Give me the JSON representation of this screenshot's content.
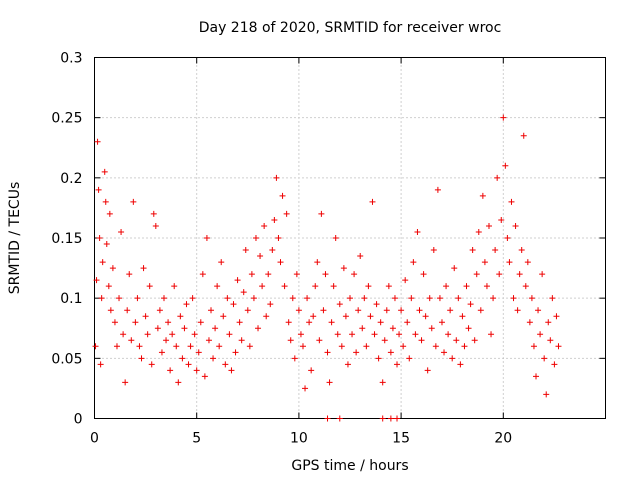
{
  "chart_data": {
    "type": "scatter",
    "title": "Day 218 of 2020, SRMTID for receiver wroc",
    "xlabel": "GPS time / hours",
    "ylabel": "SRMTID / TECUs",
    "xlim": [
      0,
      25
    ],
    "ylim": [
      0,
      0.3
    ],
    "xticks": [
      0,
      5,
      10,
      15,
      20
    ],
    "xtick_labels": [
      "0",
      "5",
      "10",
      "15",
      "20"
    ],
    "yticks": [
      0,
      0.05,
      0.1,
      0.15,
      0.2,
      0.25,
      0.3
    ],
    "ytick_labels": [
      "0",
      "0.05",
      "0.1",
      "0.15",
      "0.2",
      "0.25",
      "0.3"
    ],
    "grid": true,
    "marker": "+",
    "color": "#ee0000",
    "series": [
      {
        "name": "SRMTID",
        "points": [
          [
            0.05,
            0.06
          ],
          [
            0.1,
            0.115
          ],
          [
            0.15,
            0.23
          ],
          [
            0.2,
            0.19
          ],
          [
            0.25,
            0.15
          ],
          [
            0.3,
            0.045
          ],
          [
            0.35,
            0.1
          ],
          [
            0.4,
            0.13
          ],
          [
            0.5,
            0.205
          ],
          [
            0.55,
            0.18
          ],
          [
            0.6,
            0.145
          ],
          [
            0.7,
            0.11
          ],
          [
            0.75,
            0.17
          ],
          [
            0.8,
            0.09
          ],
          [
            0.9,
            0.125
          ],
          [
            1.0,
            0.08
          ],
          [
            1.1,
            0.06
          ],
          [
            1.2,
            0.1
          ],
          [
            1.3,
            0.155
          ],
          [
            1.4,
            0.07
          ],
          [
            1.5,
            0.03
          ],
          [
            1.6,
            0.09
          ],
          [
            1.7,
            0.12
          ],
          [
            1.8,
            0.065
          ],
          [
            1.9,
            0.18
          ],
          [
            2.0,
            0.08
          ],
          [
            2.1,
            0.1
          ],
          [
            2.2,
            0.06
          ],
          [
            2.3,
            0.05
          ],
          [
            2.4,
            0.125
          ],
          [
            2.5,
            0.085
          ],
          [
            2.6,
            0.07
          ],
          [
            2.7,
            0.11
          ],
          [
            2.8,
            0.045
          ],
          [
            2.9,
            0.17
          ],
          [
            3.0,
            0.16
          ],
          [
            3.1,
            0.075
          ],
          [
            3.2,
            0.09
          ],
          [
            3.3,
            0.055
          ],
          [
            3.4,
            0.1
          ],
          [
            3.5,
            0.065
          ],
          [
            3.6,
            0.08
          ],
          [
            3.7,
            0.04
          ],
          [
            3.8,
            0.07
          ],
          [
            3.9,
            0.11
          ],
          [
            4.0,
            0.06
          ],
          [
            4.1,
            0.03
          ],
          [
            4.2,
            0.085
          ],
          [
            4.3,
            0.05
          ],
          [
            4.4,
            0.075
          ],
          [
            4.5,
            0.095
          ],
          [
            4.6,
            0.045
          ],
          [
            4.7,
            0.06
          ],
          [
            4.8,
            0.1
          ],
          [
            4.9,
            0.07
          ],
          [
            5.0,
            0.04
          ],
          [
            5.1,
            0.055
          ],
          [
            5.2,
            0.08
          ],
          [
            5.3,
            0.12
          ],
          [
            5.4,
            0.035
          ],
          [
            5.5,
            0.15
          ],
          [
            5.6,
            0.065
          ],
          [
            5.7,
            0.09
          ],
          [
            5.8,
            0.05
          ],
          [
            5.9,
            0.075
          ],
          [
            6.0,
            0.11
          ],
          [
            6.1,
            0.06
          ],
          [
            6.2,
            0.13
          ],
          [
            6.3,
            0.085
          ],
          [
            6.4,
            0.045
          ],
          [
            6.5,
            0.1
          ],
          [
            6.6,
            0.07
          ],
          [
            6.7,
            0.04
          ],
          [
            6.8,
            0.095
          ],
          [
            6.9,
            0.055
          ],
          [
            7.0,
            0.115
          ],
          [
            7.1,
            0.08
          ],
          [
            7.2,
            0.065
          ],
          [
            7.3,
            0.105
          ],
          [
            7.4,
            0.14
          ],
          [
            7.5,
            0.09
          ],
          [
            7.6,
            0.06
          ],
          [
            7.7,
            0.12
          ],
          [
            7.8,
            0.1
          ],
          [
            7.9,
            0.15
          ],
          [
            8.0,
            0.075
          ],
          [
            8.1,
            0.135
          ],
          [
            8.2,
            0.11
          ],
          [
            8.3,
            0.16
          ],
          [
            8.4,
            0.085
          ],
          [
            8.5,
            0.12
          ],
          [
            8.6,
            0.095
          ],
          [
            8.7,
            0.14
          ],
          [
            8.8,
            0.165
          ],
          [
            8.9,
            0.2
          ],
          [
            9.0,
            0.15
          ],
          [
            9.1,
            0.13
          ],
          [
            9.2,
            0.185
          ],
          [
            9.3,
            0.11
          ],
          [
            9.4,
            0.17
          ],
          [
            9.5,
            0.08
          ],
          [
            9.6,
            0.065
          ],
          [
            9.7,
            0.1
          ],
          [
            9.8,
            0.05
          ],
          [
            9.9,
            0.12
          ],
          [
            10.0,
            0.09
          ],
          [
            10.1,
            0.07
          ],
          [
            10.2,
            0.06
          ],
          [
            10.3,
            0.025
          ],
          [
            10.4,
            0.1
          ],
          [
            10.5,
            0.08
          ],
          [
            10.6,
            0.04
          ],
          [
            10.7,
            0.085
          ],
          [
            10.8,
            0.11
          ],
          [
            10.9,
            0.13
          ],
          [
            11.0,
            0.065
          ],
          [
            11.1,
            0.17
          ],
          [
            11.2,
            0.09
          ],
          [
            11.3,
            0.12
          ],
          [
            11.4,
            0.055
          ],
          [
            11.5,
            0.03
          ],
          [
            11.6,
            0.08
          ],
          [
            11.7,
            0.11
          ],
          [
            11.8,
            0.15
          ],
          [
            11.9,
            0.07
          ],
          [
            12.0,
            0.095
          ],
          [
            12.1,
            0.06
          ],
          [
            12.2,
            0.125
          ],
          [
            12.3,
            0.085
          ],
          [
            12.4,
            0.045
          ],
          [
            12.5,
            0.1
          ],
          [
            12.6,
            0.07
          ],
          [
            12.7,
            0.12
          ],
          [
            12.8,
            0.055
          ],
          [
            12.9,
            0.09
          ],
          [
            13.0,
            0.135
          ],
          [
            13.1,
            0.075
          ],
          [
            13.2,
            0.1
          ],
          [
            13.3,
            0.06
          ],
          [
            13.4,
            0.11
          ],
          [
            13.5,
            0.085
          ],
          [
            13.6,
            0.18
          ],
          [
            13.7,
            0.07
          ],
          [
            13.8,
            0.095
          ],
          [
            13.9,
            0.05
          ],
          [
            14.0,
            0.08
          ],
          [
            14.1,
            0.03
          ],
          [
            14.2,
            0.065
          ],
          [
            14.3,
            0.09
          ],
          [
            14.4,
            0.11
          ],
          [
            14.5,
            0.055
          ],
          [
            14.6,
            0.075
          ],
          [
            14.7,
            0.1
          ],
          [
            14.8,
            0.045
          ],
          [
            14.9,
            0.07
          ],
          [
            15.0,
            0.09
          ],
          [
            15.1,
            0.06
          ],
          [
            15.2,
            0.115
          ],
          [
            15.3,
            0.08
          ],
          [
            15.4,
            0.05
          ],
          [
            15.5,
            0.1
          ],
          [
            15.6,
            0.13
          ],
          [
            15.7,
            0.07
          ],
          [
            15.8,
            0.155
          ],
          [
            15.9,
            0.09
          ],
          [
            16.0,
            0.065
          ],
          [
            16.1,
            0.12
          ],
          [
            16.2,
            0.085
          ],
          [
            16.3,
            0.04
          ],
          [
            16.4,
            0.1
          ],
          [
            16.5,
            0.075
          ],
          [
            16.6,
            0.14
          ],
          [
            16.7,
            0.06
          ],
          [
            16.8,
            0.19
          ],
          [
            16.9,
            0.1
          ],
          [
            17.0,
            0.08
          ],
          [
            17.1,
            0.055
          ],
          [
            17.2,
            0.11
          ],
          [
            17.3,
            0.07
          ],
          [
            17.4,
            0.09
          ],
          [
            17.5,
            0.05
          ],
          [
            17.6,
            0.125
          ],
          [
            17.7,
            0.065
          ],
          [
            17.8,
            0.1
          ],
          [
            17.9,
            0.045
          ],
          [
            18.0,
            0.085
          ],
          [
            18.1,
            0.06
          ],
          [
            18.2,
            0.11
          ],
          [
            18.3,
            0.075
          ],
          [
            18.4,
            0.095
          ],
          [
            18.5,
            0.14
          ],
          [
            18.6,
            0.065
          ],
          [
            18.7,
            0.12
          ],
          [
            18.8,
            0.155
          ],
          [
            18.9,
            0.09
          ],
          [
            19.0,
            0.185
          ],
          [
            19.1,
            0.13
          ],
          [
            19.2,
            0.11
          ],
          [
            19.3,
            0.16
          ],
          [
            19.4,
            0.07
          ],
          [
            19.5,
            0.1
          ],
          [
            19.6,
            0.14
          ],
          [
            19.7,
            0.2
          ],
          [
            19.8,
            0.12
          ],
          [
            19.9,
            0.165
          ],
          [
            20.0,
            0.25
          ],
          [
            20.1,
            0.21
          ],
          [
            20.2,
            0.15
          ],
          [
            20.3,
            0.13
          ],
          [
            20.4,
            0.18
          ],
          [
            20.5,
            0.1
          ],
          [
            20.6,
            0.16
          ],
          [
            20.7,
            0.09
          ],
          [
            20.8,
            0.12
          ],
          [
            20.9,
            0.14
          ],
          [
            21.0,
            0.235
          ],
          [
            21.1,
            0.11
          ],
          [
            21.2,
            0.13
          ],
          [
            21.3,
            0.08
          ],
          [
            21.4,
            0.1
          ],
          [
            21.5,
            0.06
          ],
          [
            21.6,
            0.035
          ],
          [
            21.7,
            0.09
          ],
          [
            21.8,
            0.07
          ],
          [
            21.9,
            0.12
          ],
          [
            22.0,
            0.05
          ],
          [
            22.1,
            0.02
          ],
          [
            22.2,
            0.08
          ],
          [
            22.3,
            0.065
          ],
          [
            22.4,
            0.1
          ],
          [
            22.5,
            0.045
          ],
          [
            22.6,
            0.085
          ],
          [
            22.7,
            0.06
          ],
          [
            11.4,
            0.0
          ],
          [
            12.0,
            0.0
          ],
          [
            14.1,
            0.0
          ],
          [
            14.5,
            0.0
          ],
          [
            14.8,
            0.0
          ]
        ]
      }
    ]
  }
}
